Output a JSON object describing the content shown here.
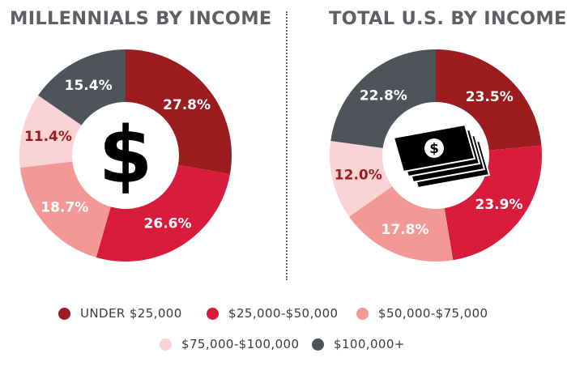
{
  "colors": {
    "under_25k": "#9b1b1e",
    "25k_50k": "#d91c3c",
    "50k_75k": "#f29897",
    "75k_100k": "#fad3d4",
    "100k_plus": "#4f535a"
  },
  "legend": [
    {
      "label": "UNDER $25,000",
      "color_key": "under_25k"
    },
    {
      "label": "$25,000-$50,000",
      "color_key": "25k_50k"
    },
    {
      "label": "$50,000-$75,000",
      "color_key": "50k_75k"
    },
    {
      "label": "$75,000-$100,000",
      "color_key": "75k_100k"
    },
    {
      "label": "$100,000+",
      "color_key": "100k_plus"
    }
  ],
  "chart_data": [
    {
      "type": "pie",
      "title": "MILLENNIALS BY INCOME",
      "center_icon": "dollar-sign-icon",
      "categories": [
        "UNDER $25,000",
        "$25,000-$50,000",
        "$50,000-$75,000",
        "$75,000-$100,000",
        "$100,000+"
      ],
      "values": [
        27.8,
        26.6,
        18.7,
        11.4,
        15.4
      ],
      "labels": [
        "27.8%",
        "26.6%",
        "18.7%",
        "11.4%",
        "15.4%"
      ],
      "color_keys": [
        "under_25k",
        "25k_50k",
        "50k_75k",
        "75k_100k",
        "100k_plus"
      ],
      "label_colors": [
        "#ffffff",
        "#ffffff",
        "#ffffff",
        "#9b1b1e",
        "#ffffff"
      ]
    },
    {
      "type": "pie",
      "title": "TOTAL U.S. BY INCOME",
      "center_icon": "money-stack-icon",
      "categories": [
        "UNDER $25,000",
        "$25,000-$50,000",
        "$50,000-$75,000",
        "$75,000-$100,000",
        "$100,000+"
      ],
      "values": [
        23.5,
        23.9,
        17.8,
        12.0,
        22.8
      ],
      "labels": [
        "23.5%",
        "23.9%",
        "17.8%",
        "12.0%",
        "22.8%"
      ],
      "color_keys": [
        "under_25k",
        "25k_50k",
        "50k_75k",
        "75k_100k",
        "100k_plus"
      ],
      "label_colors": [
        "#ffffff",
        "#ffffff",
        "#ffffff",
        "#9b1b1e",
        "#ffffff"
      ]
    }
  ]
}
